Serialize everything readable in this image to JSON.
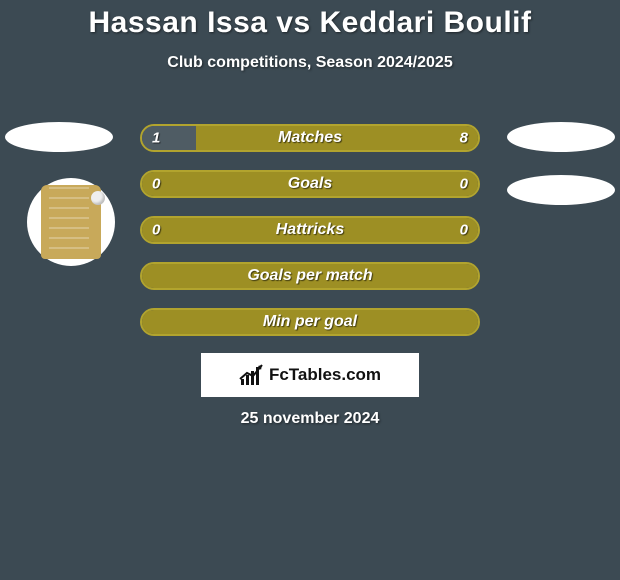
{
  "background_color": "#3c4a53",
  "title": "Hassan Issa vs Keddari Boulif",
  "subtitle": "Club competitions, Season 2024/2025",
  "date": "25 november 2024",
  "logo_text": "FcTables.com",
  "palette": {
    "olive_fill": "#9d8f24",
    "olive_border": "#b2a42e",
    "dark_fill": "#4f5c64"
  },
  "rows": [
    {
      "label": "Matches",
      "left_value": "1",
      "right_value": "8",
      "left_pct": 16,
      "right_pct": 84,
      "left_color": "#4f5c64",
      "right_color": "#9d8f24",
      "border_color": "#b2a42e",
      "show_values": true
    },
    {
      "label": "Goals",
      "left_value": "0",
      "right_value": "0",
      "left_pct": 100,
      "right_pct": 0,
      "left_color": "#9d8f24",
      "right_color": "#9d8f24",
      "border_color": "#b2a42e",
      "show_values": true
    },
    {
      "label": "Hattricks",
      "left_value": "0",
      "right_value": "0",
      "left_pct": 100,
      "right_pct": 0,
      "left_color": "#9d8f24",
      "right_color": "#9d8f24",
      "border_color": "#b2a42e",
      "show_values": true
    },
    {
      "label": "Goals per match",
      "left_value": "",
      "right_value": "",
      "left_pct": 100,
      "right_pct": 0,
      "left_color": "#9d8f24",
      "right_color": "#9d8f24",
      "border_color": "#b2a42e",
      "show_values": false
    },
    {
      "label": "Min per goal",
      "left_value": "",
      "right_value": "",
      "left_pct": 100,
      "right_pct": 0,
      "left_color": "#9d8f24",
      "right_color": "#9d8f24",
      "border_color": "#b2a42e",
      "show_values": false
    }
  ]
}
